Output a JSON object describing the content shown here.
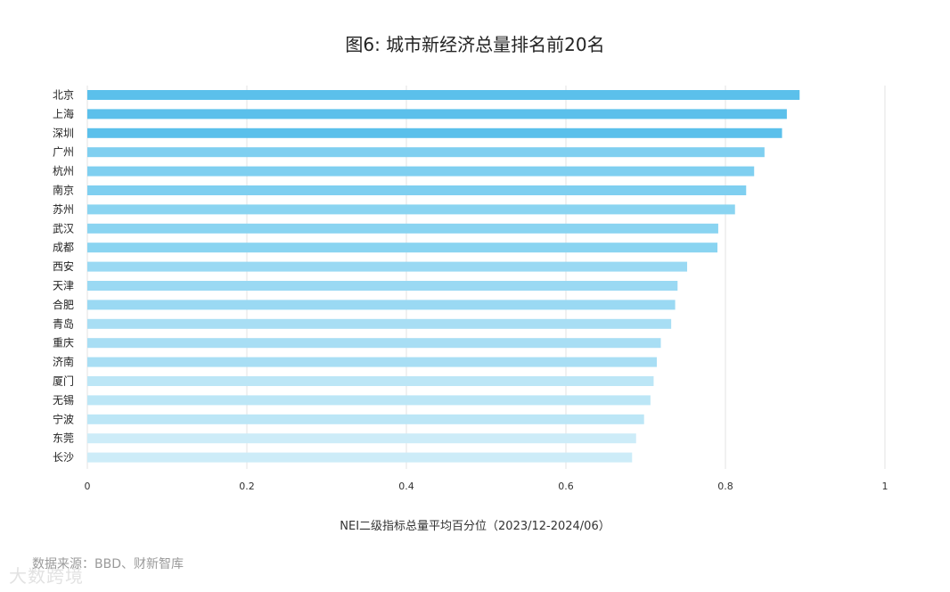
{
  "chart_data": {
    "type": "bar",
    "orientation": "horizontal",
    "title": "图6: 城市新经济总量排名前20名",
    "xlabel": "NEI二级指标总量平均百分位（2023/12-2024/06）",
    "ylabel": "",
    "xlim": [
      0,
      1
    ],
    "x_ticks": [
      "0",
      "0.2",
      "0.4",
      "0.6",
      "0.8",
      "1"
    ],
    "grid": true,
    "categories": [
      "北京",
      "上海",
      "深圳",
      "广州",
      "杭州",
      "南京",
      "苏州",
      "武汉",
      "成都",
      "西安",
      "天津",
      "合肥",
      "青岛",
      "重庆",
      "济南",
      "厦门",
      "无锡",
      "宁波",
      "东莞",
      "长沙"
    ],
    "values": [
      0.893,
      0.877,
      0.871,
      0.849,
      0.836,
      0.826,
      0.812,
      0.791,
      0.79,
      0.752,
      0.74,
      0.737,
      0.732,
      0.719,
      0.714,
      0.71,
      0.706,
      0.698,
      0.688,
      0.683
    ],
    "colors": [
      "#5bc0eb",
      "#5bc0eb",
      "#5bc0eb",
      "#7fcff0",
      "#7fcff0",
      "#7fcff0",
      "#8ad4f1",
      "#8ad4f1",
      "#8ad4f1",
      "#9ad9f3",
      "#9ad9f3",
      "#9ad9f3",
      "#a8def4",
      "#a8def4",
      "#a8def4",
      "#bce6f6",
      "#bce6f6",
      "#bce6f6",
      "#cdecf8",
      "#cdecf8"
    ]
  },
  "source_text": "数据来源：BBD、财新智库",
  "watermark_text": "大数跨境"
}
